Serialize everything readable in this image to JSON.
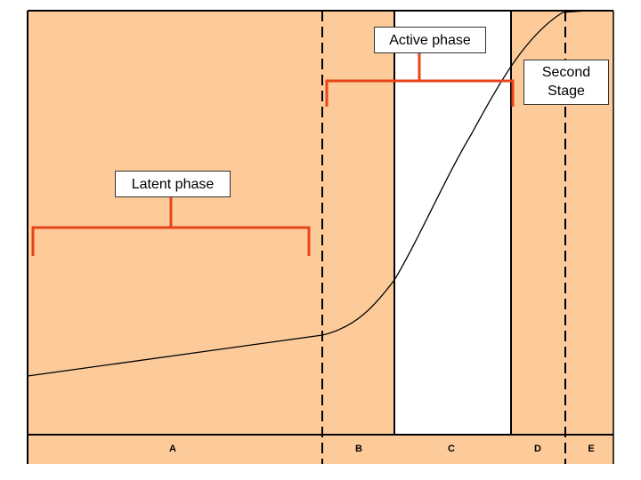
{
  "colors": {
    "region_fill": "#FDCB9A",
    "clear_fill": "#FFFFFF",
    "bracket": "#E8441C",
    "line": "#000000"
  },
  "labels": {
    "active": "Active phase",
    "second_line1": "Second",
    "second_line2": "Stage",
    "latent": "Latent phase"
  },
  "segments": [
    "A",
    "B",
    "C",
    "D",
    "E"
  ]
}
